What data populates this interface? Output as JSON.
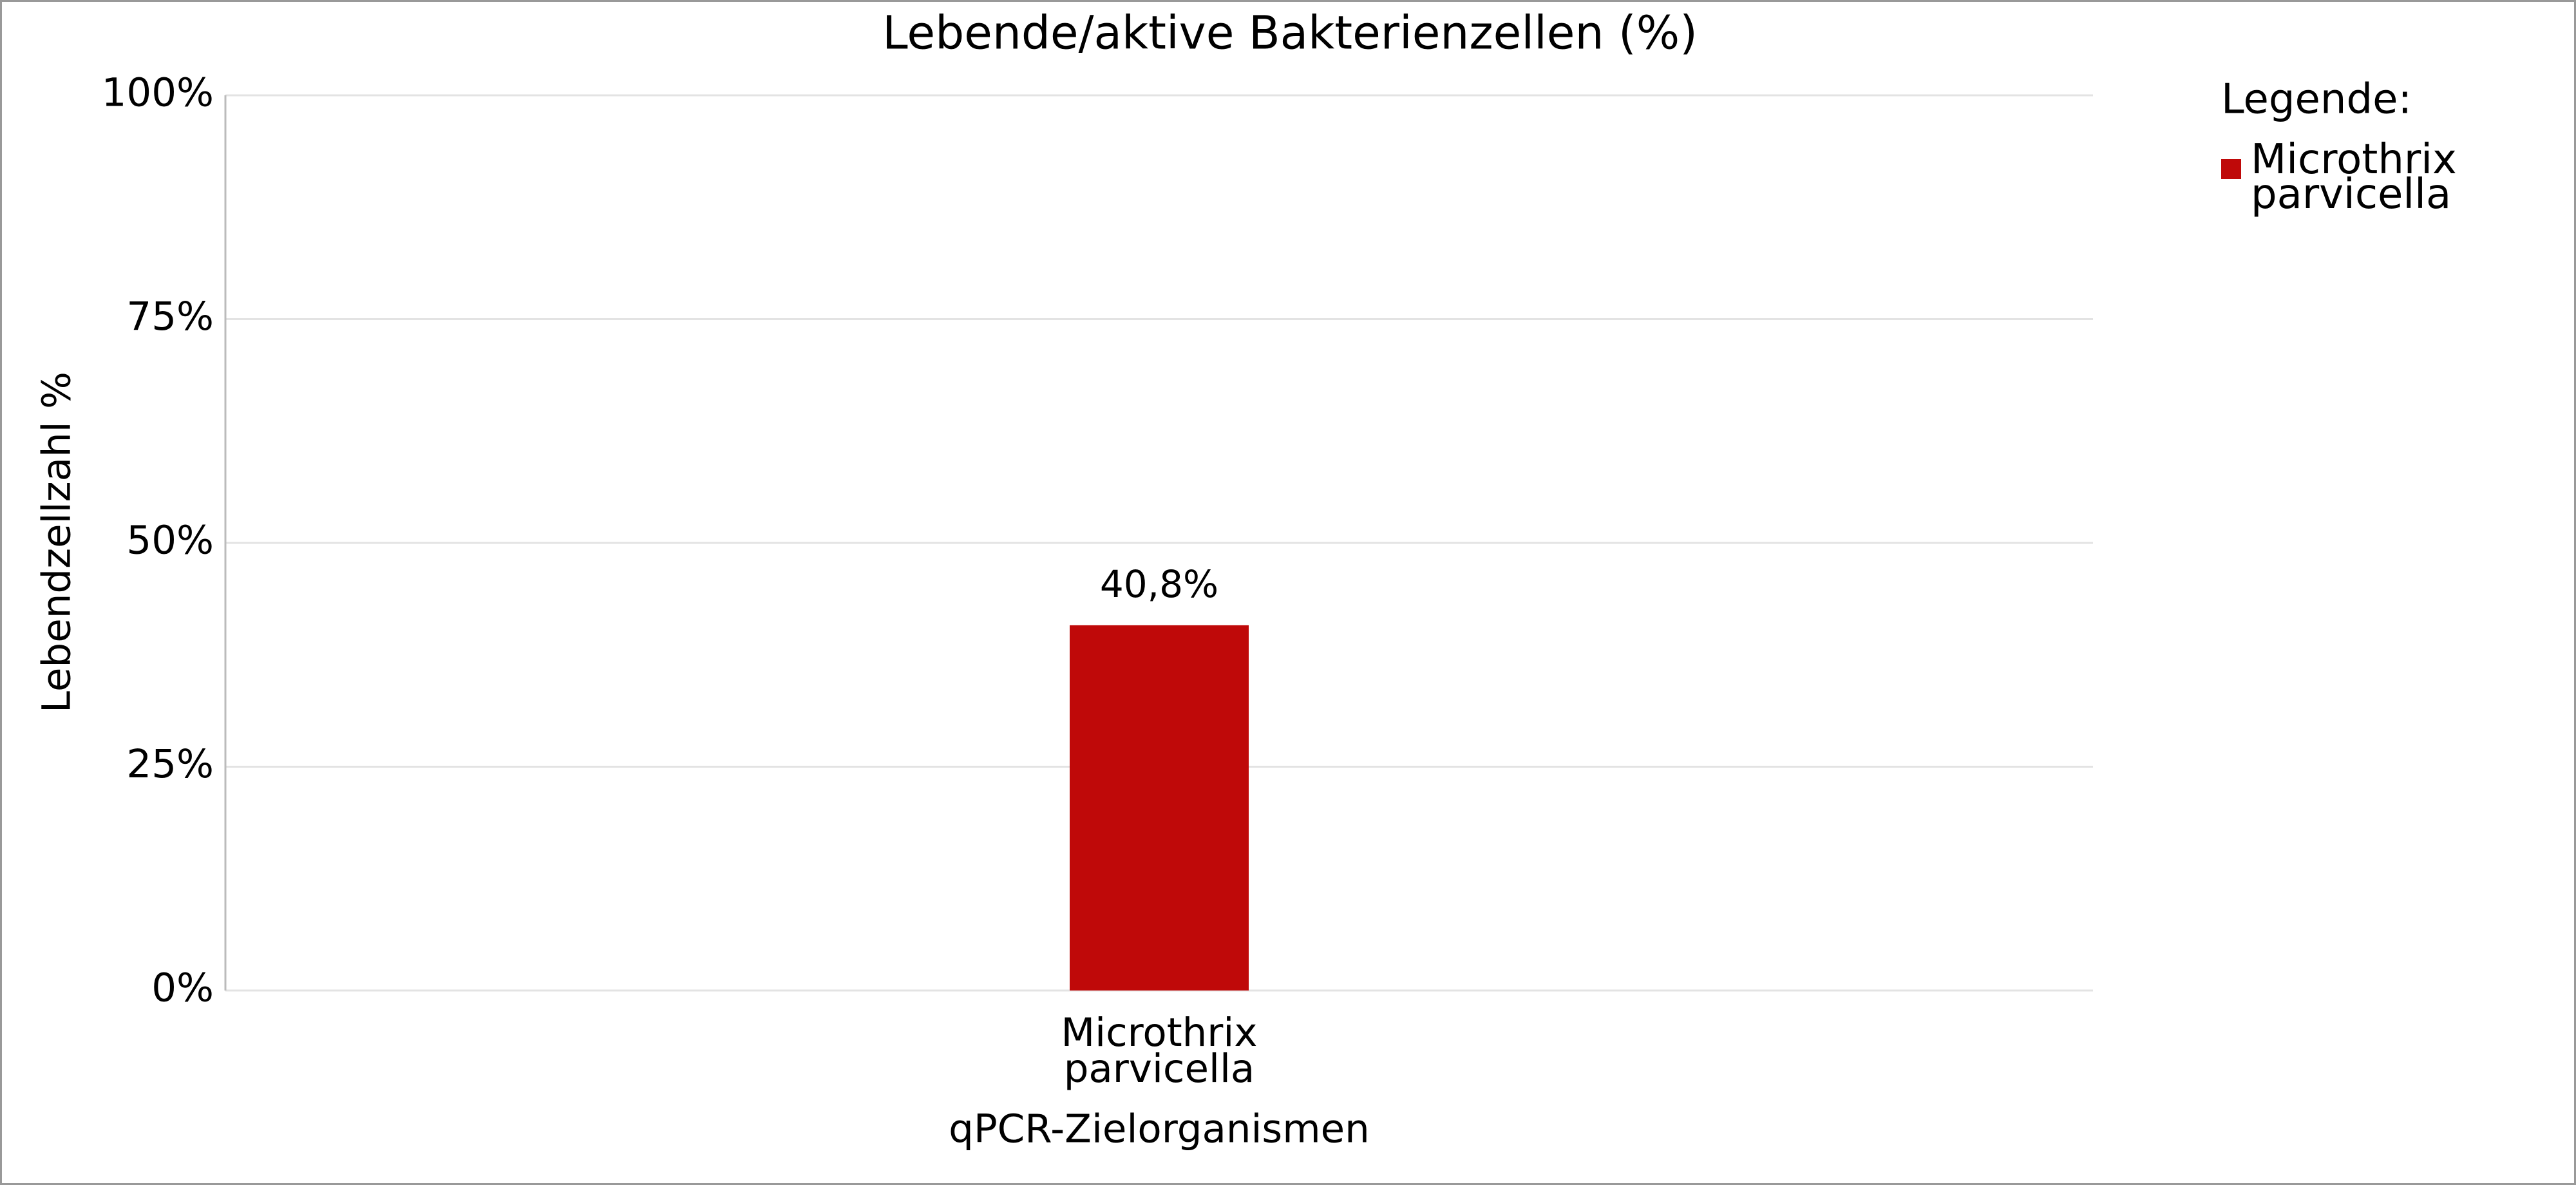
{
  "chart_data": {
    "type": "bar",
    "title": "Lebende/aktive Bakterienzellen (%)",
    "x_label": "qPCR-Zielorganismen",
    "y_label": "Lebendzellzahl %",
    "legend_title": "Legende:",
    "categories": [
      "Microthrix parvicella"
    ],
    "series": [
      {
        "name": "Microthrix parvicella",
        "color": "#bf0909",
        "values": [
          40.8
        ],
        "value_labels": [
          "40,8%"
        ]
      }
    ],
    "ylim": [
      0,
      100
    ],
    "yticks": [
      {
        "value": 0,
        "label": "0%"
      },
      {
        "value": 25,
        "label": "25%"
      },
      {
        "value": 50,
        "label": "50%"
      },
      {
        "value": 75,
        "label": "75%"
      },
      {
        "value": 100,
        "label": "100%"
      }
    ],
    "grid": true,
    "legend_position": "right"
  }
}
